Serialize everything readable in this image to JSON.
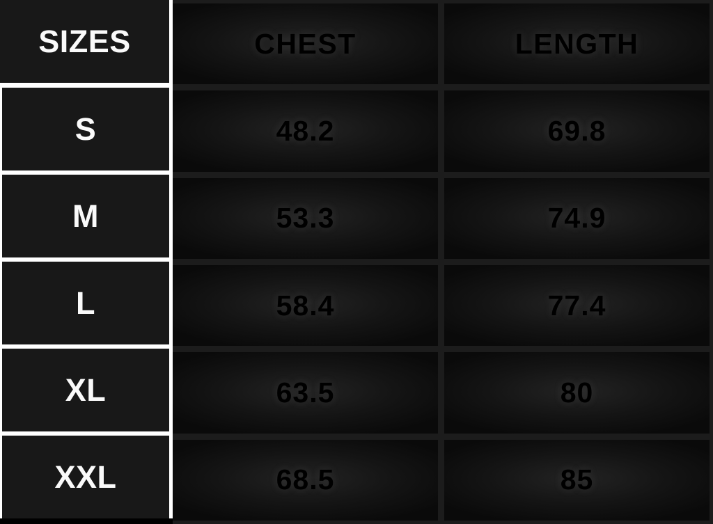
{
  "table": {
    "columns": [
      "SIZES",
      "CHEST",
      "LENGTH"
    ],
    "rows": [
      {
        "size": "S",
        "chest": "48.2",
        "length": "69.8"
      },
      {
        "size": "M",
        "chest": "53.3",
        "length": "74.9"
      },
      {
        "size": "L",
        "chest": "58.4",
        "length": "77.4"
      },
      {
        "size": "XL",
        "chest": "63.5",
        "length": "80"
      },
      {
        "size": "XXL",
        "chest": "68.5",
        "length": "85"
      }
    ]
  },
  "colors": {
    "background": "#000000",
    "sizes_cell_bg": "#181818",
    "sizes_border": "#ffffff",
    "sizes_text": "#fafafa",
    "measure_separator": "#1c1c1c",
    "measure_cell_bg": "#0a0a0a",
    "measure_cell_highlight": "#232323",
    "measure_text": "#000000"
  },
  "chart_data": {
    "type": "table",
    "title": "Garment size chart",
    "columns": [
      "SIZES",
      "CHEST",
      "LENGTH"
    ],
    "rows": [
      [
        "S",
        48.2,
        69.8
      ],
      [
        "M",
        53.3,
        74.9
      ],
      [
        "L",
        58.4,
        77.4
      ],
      [
        "XL",
        63.5,
        80
      ],
      [
        "XXL",
        68.5,
        85
      ]
    ]
  }
}
